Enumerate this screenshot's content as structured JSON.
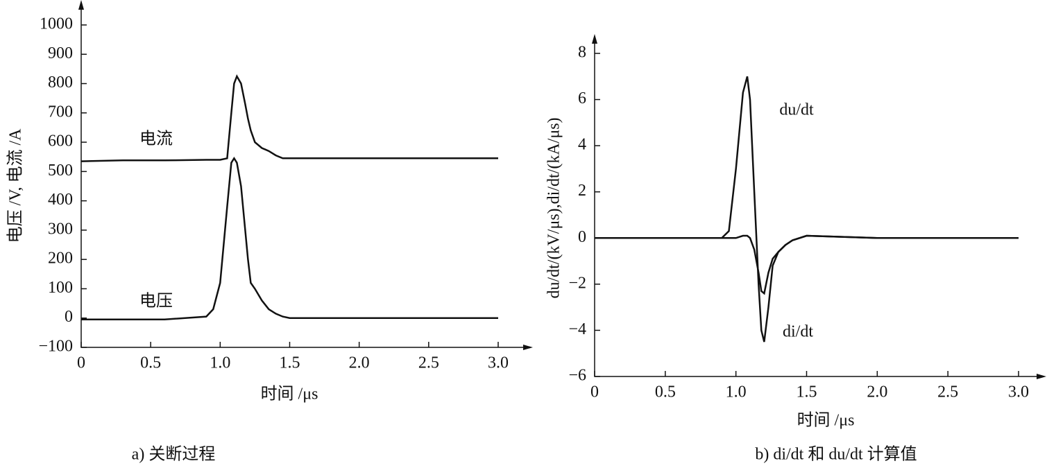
{
  "chart_data": [
    {
      "type": "line",
      "caption": "a) 关断过程",
      "xlabel": "时间 /μs",
      "ylabel": "电压 /V, 电流 /A",
      "x": [
        0,
        0.3,
        0.6,
        0.9,
        0.95,
        1.0,
        1.05,
        1.08,
        1.1,
        1.12,
        1.15,
        1.18,
        1.2,
        1.22,
        1.25,
        1.3,
        1.35,
        1.4,
        1.45,
        1.5,
        2.0,
        2.5,
        3.0
      ],
      "series": [
        {
          "name": "电流",
          "color": "#111111",
          "values": [
            535,
            538,
            538,
            540,
            540,
            540,
            545,
            700,
            800,
            825,
            800,
            730,
            680,
            640,
            600,
            580,
            570,
            555,
            545,
            545,
            545,
            545,
            545
          ]
        },
        {
          "name": "电压",
          "color": "#111111",
          "values": [
            -5,
            -5,
            -5,
            5,
            30,
            120,
            380,
            530,
            545,
            530,
            450,
            300,
            200,
            120,
            100,
            60,
            30,
            15,
            5,
            0,
            0,
            0,
            0
          ]
        }
      ],
      "xlim": [
        0,
        3.0
      ],
      "xticks": [
        0,
        0.5,
        {
          "value": 1.0,
          "label": "1.0"
        },
        1.5,
        {
          "value": 2.0,
          "label": "2.0"
        },
        2.5,
        {
          "value": 3.0,
          "label": "3.0"
        }
      ],
      "ylim": [
        -100,
        1000
      ],
      "yticks": [
        {
          "value": -100,
          "label": "−100"
        },
        0,
        100,
        200,
        300,
        400,
        500,
        600,
        700,
        800,
        900,
        1000
      ]
    },
    {
      "type": "line",
      "caption": "b) di/dt 和 du/dt 计算值",
      "xlabel": "时间 /μs",
      "ylabel": "du/dt/(kV/μs),di/dt/(kA/μs)",
      "x": [
        0,
        0.5,
        0.9,
        0.95,
        1.0,
        1.05,
        1.08,
        1.1,
        1.13,
        1.16,
        1.18,
        1.2,
        1.23,
        1.26,
        1.3,
        1.35,
        1.4,
        1.5,
        2.0,
        2.5,
        3.0
      ],
      "series": [
        {
          "name": "du/dt",
          "color": "#111111",
          "values": [
            0,
            0,
            0,
            0.3,
            3,
            6.3,
            7,
            6,
            2,
            -2,
            -4,
            -4.5,
            -3,
            -1.2,
            -0.6,
            -0.3,
            -0.1,
            0.1,
            0,
            0,
            0
          ]
        },
        {
          "name": "di/dt",
          "color": "#111111",
          "values": [
            0,
            0,
            0,
            0,
            0,
            0.1,
            0.1,
            0,
            -0.5,
            -1.5,
            -2.3,
            -2.4,
            -1.5,
            -0.9,
            -0.6,
            -0.3,
            -0.1,
            0.1,
            0,
            0,
            0
          ]
        }
      ],
      "xlim": [
        0,
        3.0
      ],
      "xticks": [
        0,
        0.5,
        {
          "value": 1.0,
          "label": "1.0"
        },
        1.5,
        {
          "value": 2.0,
          "label": "2.0"
        },
        2.5,
        {
          "value": 3.0,
          "label": "3.0"
        }
      ],
      "ylim": [
        -6,
        8
      ],
      "yticks": [
        {
          "value": -6,
          "label": "−6"
        },
        {
          "value": -4,
          "label": "−4"
        },
        {
          "value": -2,
          "label": "−2"
        },
        0,
        2,
        4,
        6,
        8
      ]
    }
  ]
}
